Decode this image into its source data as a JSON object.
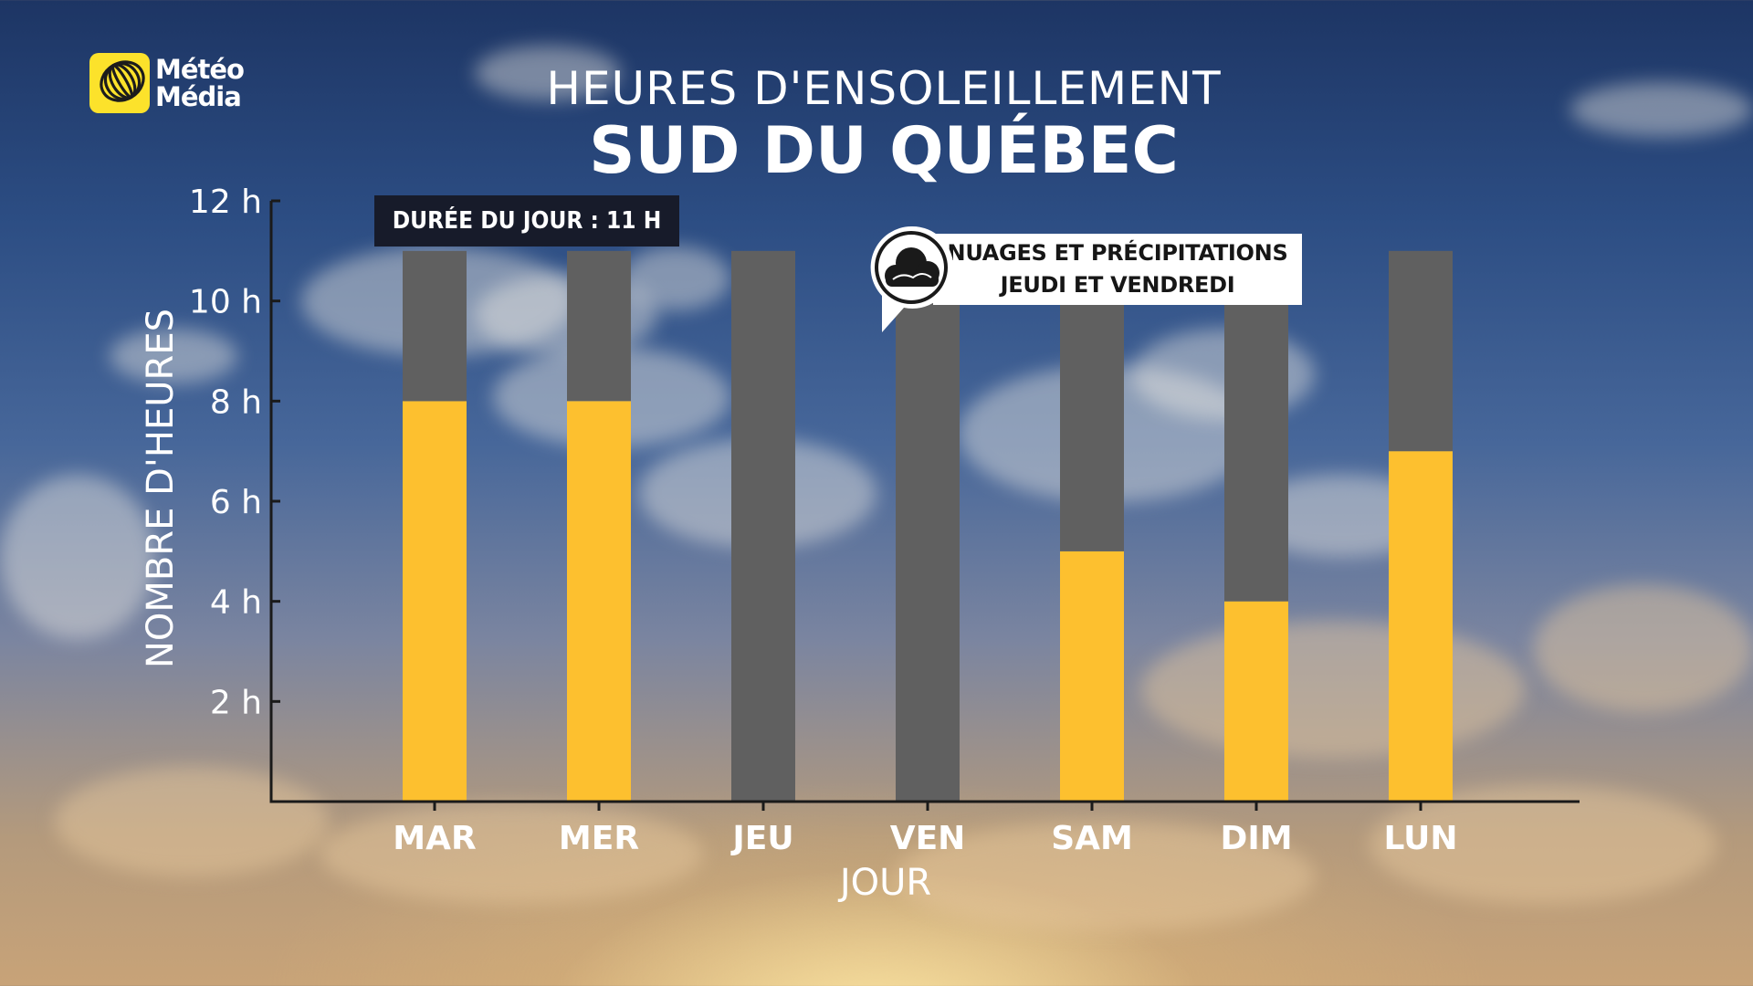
{
  "brand": {
    "line1": "Météo",
    "line2": "Média"
  },
  "header": {
    "title": "HEURES D'ENSOLEILLEMENT",
    "subtitle": "SUD DU QUÉBEC"
  },
  "annotations": {
    "day_length": "DURÉE DU JOUR : 11 H",
    "callout_line1": "NUAGES ET PRÉCIPITATIONS",
    "callout_line2": "JEUDI ET VENDREDI",
    "callout_icon": "cloud-icon"
  },
  "colors": {
    "sun": "#fdc02f",
    "cloud": "#606060",
    "axis": "#1a1a1a",
    "text": "#ffffff"
  },
  "chart_data": {
    "type": "bar",
    "stacked": true,
    "categories": [
      "MAR",
      "MER",
      "JEU",
      "VEN",
      "SAM",
      "DIM",
      "LUN"
    ],
    "series": [
      {
        "values": [
          8,
          8,
          0,
          0,
          5,
          4,
          7
        ]
      },
      {
        "values": [
          3,
          3,
          11,
          11,
          6,
          7,
          4
        ]
      }
    ],
    "xlabel": "JOUR",
    "ylabel": "NOMBRE D'HEURES",
    "ylim": [
      0,
      12
    ],
    "yticks": [
      2,
      4,
      6,
      8,
      10,
      12
    ],
    "ytick_labels": [
      "2 h",
      "4 h",
      "6 h",
      "8 h",
      "10 h",
      "12 h"
    ],
    "grid": false,
    "legend": "none"
  }
}
